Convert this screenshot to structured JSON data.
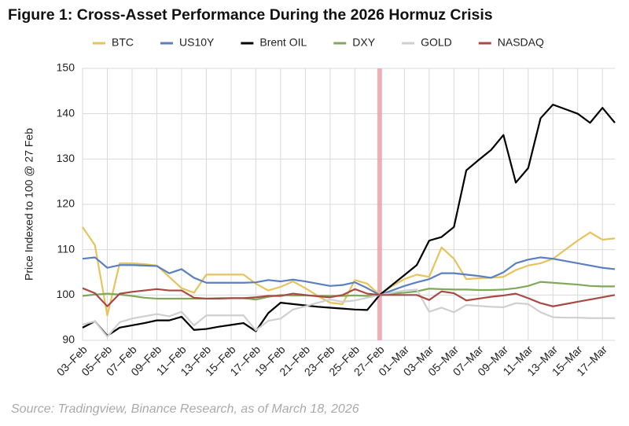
{
  "chart_data": {
    "type": "line",
    "title": "Figure 1: Cross-Asset Performance During the 2026 Hormuz Crisis",
    "y_label": "Price Indexed to 100 @ 27 Feb",
    "source": "Source: Tradingview, Binance Research, as of March 18, 2026",
    "categories": [
      "03–Feb",
      null,
      "05–Feb",
      null,
      "07–Feb",
      null,
      "09–Feb",
      null,
      "11–Feb",
      null,
      "13–Feb",
      null,
      "15–Feb",
      null,
      "17–Feb",
      null,
      "19–Feb",
      null,
      "21–Feb",
      null,
      "23–Feb",
      null,
      "25–Feb",
      null,
      "27–Feb",
      null,
      "01–Mar",
      null,
      "03–Mar",
      null,
      "05–Mar",
      null,
      "07–Mar",
      null,
      "09–Mar",
      null,
      "11–Mar",
      null,
      "13–Mar",
      null,
      "15–Mar",
      null,
      "17–Mar",
      null
    ],
    "highlight_category": "27–Feb",
    "ylim": [
      90,
      150
    ],
    "yticks": [
      90,
      100,
      110,
      120,
      130,
      140,
      150
    ],
    "grid": true,
    "series": [
      {
        "name": "BTC",
        "color": "#e6c35c",
        "values": [
          115,
          111,
          95.5,
          107,
          107,
          106.8,
          106.5,
          104,
          101.5,
          100.5,
          104.5,
          104.5,
          104.5,
          104.5,
          102.5,
          101,
          101.8,
          103,
          101.5,
          99.8,
          98.3,
          98,
          103.3,
          102.5,
          100,
          102,
          103.5,
          104.5,
          104,
          110.5,
          108,
          103.5,
          103.7,
          103.8,
          104,
          105.5,
          106.5,
          107,
          108,
          110,
          112,
          113.8,
          112.2,
          112.5
        ]
      },
      {
        "name": "US10Y",
        "color": "#5b7fbf",
        "values": [
          108,
          108.3,
          106,
          106.6,
          106.6,
          106.5,
          106.4,
          104.8,
          105.7,
          103.8,
          102.7,
          102.7,
          102.7,
          102.7,
          102.8,
          103.3,
          103,
          103.4,
          103,
          102.5,
          102,
          102.2,
          102.8,
          101.5,
          100,
          101,
          102,
          102.8,
          103.5,
          104.8,
          104.8,
          104.5,
          104.2,
          103.8,
          105,
          107,
          107.8,
          108.3,
          108,
          107.5,
          107,
          106.5,
          106,
          105.7
        ]
      },
      {
        "name": "Brent OIL",
        "color": "#000000",
        "values": [
          92.8,
          94.2,
          91,
          92.8,
          93.3,
          93.8,
          94.4,
          94.4,
          95.2,
          92.3,
          92.5,
          93,
          93.4,
          93.8,
          92,
          96,
          98.3,
          98,
          97.7,
          97.4,
          97.2,
          97,
          96.8,
          96.7,
          100,
          102.2,
          104.4,
          106.6,
          112,
          112.8,
          115,
          127.5,
          129.8,
          132,
          135.3,
          124.8,
          128,
          139,
          142,
          141,
          140,
          138,
          141.3,
          138
        ]
      },
      {
        "name": "DXY",
        "color": "#7fa85a",
        "values": [
          99.8,
          100.1,
          100.3,
          100.1,
          99.8,
          99.4,
          99.2,
          99.2,
          99.2,
          99.2,
          99.2,
          99.3,
          99.3,
          99.3,
          99,
          99.6,
          100,
          99.9,
          99.9,
          99.8,
          99.8,
          99.8,
          99.9,
          99.8,
          100,
          100.3,
          100.5,
          100.8,
          101.4,
          101.3,
          101.2,
          101.2,
          101.1,
          101.1,
          101.2,
          101.5,
          102,
          102.9,
          102.7,
          102.5,
          102.3,
          102,
          101.9,
          101.9
        ]
      },
      {
        "name": "GOLD",
        "color": "#cfcfcf",
        "values": [
          93.5,
          94.2,
          90.8,
          94,
          94.8,
          95.3,
          95.8,
          95.3,
          96.3,
          93.3,
          95.5,
          95.5,
          95.5,
          95.5,
          92.2,
          94.3,
          94.8,
          96.8,
          97.5,
          98.3,
          99,
          98.5,
          98.8,
          99.4,
          100,
          100.5,
          101,
          101.2,
          96.3,
          97.2,
          96.2,
          97.8,
          97.6,
          97.4,
          97.3,
          98.2,
          98,
          96.2,
          95.1,
          95,
          95,
          94.9,
          94.9,
          94.9
        ]
      },
      {
        "name": "NASDAQ",
        "color": "#a84a44",
        "values": [
          101.5,
          100.4,
          97.5,
          100.3,
          100.7,
          101,
          101.3,
          101,
          101,
          99.4,
          99.2,
          99.2,
          99.3,
          99.3,
          99.5,
          99.8,
          99.8,
          100.3,
          100,
          99.7,
          99.5,
          100,
          101.3,
          100.3,
          100,
          100,
          100,
          100,
          98.9,
          100.8,
          100.4,
          98.8,
          99.2,
          99.6,
          99.9,
          100.3,
          99.3,
          98.2,
          97.5,
          98,
          98.5,
          99,
          99.5,
          100
        ]
      }
    ]
  }
}
